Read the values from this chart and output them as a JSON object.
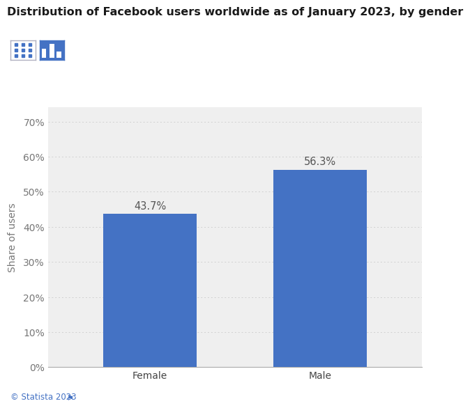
{
  "title": "Distribution of Facebook users worldwide as of January 2023, by gender",
  "categories": [
    "Female",
    "Male"
  ],
  "values": [
    43.7,
    56.3
  ],
  "bar_color": "#4472C4",
  "ylabel": "Share of users",
  "yticks": [
    0,
    10,
    20,
    30,
    40,
    50,
    60,
    70
  ],
  "ytick_labels": [
    "0%",
    "10%",
    "20%",
    "30%",
    "40%",
    "50%",
    "60%",
    "70%"
  ],
  "ylim": [
    0,
    74
  ],
  "annotations": [
    "43.7%",
    "56.3%"
  ],
  "footer": "© Statista 2023",
  "background_color": "#ffffff",
  "plot_bg_color": "#efefef",
  "grid_color": "#d0d0d0",
  "title_fontsize": 11.5,
  "label_fontsize": 10,
  "tick_fontsize": 10,
  "annotation_fontsize": 10.5,
  "bar_width": 0.55
}
